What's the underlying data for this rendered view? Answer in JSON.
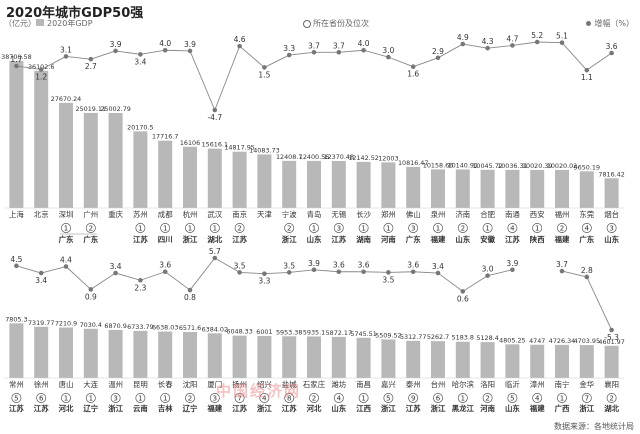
{
  "title": "2020年城市GDP50强",
  "legend": {
    "unit": "（亿元）",
    "bar_label": "2020年GDP",
    "rank_label": "所在省份及位次",
    "growth_label": "增幅（%）"
  },
  "source": "数据来源：各地统计局",
  "watermark": "中国经济网",
  "colors": {
    "bar": "#b8b8b8",
    "line": "#888888",
    "point": "#777777",
    "text": "#333333",
    "negative": "#333333"
  },
  "chart_data": [
    {
      "type": "bar",
      "categories": [
        "上海",
        "北京",
        "深圳",
        "广州",
        "重庆",
        "苏州",
        "成都",
        "杭州",
        "武汉",
        "南京",
        "天津",
        "宁波",
        "青岛",
        "无锡",
        "长沙",
        "郑州",
        "佛山",
        "泉州",
        "济南",
        "合肥",
        "南通",
        "西安",
        "福州",
        "东莞",
        "烟台"
      ],
      "series": [
        {
          "name": "2020年GDP",
          "values": [
            38700.58,
            36102.6,
            27670.24,
            25019.11,
            25002.79,
            20170.5,
            17716.7,
            16106,
            15616.1,
            14817.95,
            14083.73,
            12408.7,
            12400.56,
            12370.48,
            12142.52,
            12003,
            10816.47,
            10158.66,
            10140.91,
            10045.72,
            10036.31,
            10020.39,
            10020.02,
            9650.19,
            7816.42
          ]
        },
        {
          "name": "增幅（%）",
          "type": "line",
          "values": [
            1.7,
            1.2,
            3.1,
            2.7,
            3.9,
            3.4,
            4.0,
            3.9,
            -4.7,
            4.6,
            1.5,
            3.3,
            3.7,
            3.7,
            4.0,
            3.0,
            1.6,
            2.9,
            4.9,
            4.3,
            4.7,
            5.2,
            5.1,
            1.1,
            3.6
          ]
        }
      ],
      "province": [
        "",
        "",
        "广东",
        "广东",
        "",
        "江苏",
        "四川",
        "浙江",
        "湖北",
        "江苏",
        "",
        "浙江",
        "山东",
        "江苏",
        "湖南",
        "河南",
        "广东",
        "福建",
        "山东",
        "安徽",
        "江苏",
        "陕西",
        "福建",
        "广东",
        "山东"
      ],
      "province_rank": [
        "",
        "",
        "1",
        "2",
        "",
        "1",
        "1",
        "1",
        "1",
        "2",
        "",
        "2",
        "1",
        "3",
        "1",
        "1",
        "3",
        "1",
        "2",
        "1",
        "4",
        "1",
        "2",
        "4",
        "3"
      ],
      "ylim": [
        0,
        40000
      ]
    },
    {
      "type": "bar",
      "categories": [
        "常州",
        "徐州",
        "唐山",
        "大连",
        "温州",
        "昆明",
        "长春",
        "沈阳",
        "厦门",
        "扬州",
        "绍兴",
        "盐城",
        "石家庄",
        "潍坊",
        "南昌",
        "嘉兴",
        "泰州",
        "台州",
        "哈尔滨",
        "洛阳",
        "临沂",
        "漳州",
        "南宁",
        "金华",
        "襄阳"
      ],
      "series": [
        {
          "name": "2020年GDP",
          "values": [
            7805.3,
            7319.77,
            7210.9,
            7030.4,
            6870.9,
            6733.79,
            6638.03,
            6571.6,
            6384.02,
            6048.33,
            6001,
            5953.38,
            5935.1,
            5872.17,
            5745.51,
            5509.52,
            5312.77,
            5262.7,
            5183.8,
            5128.4,
            4805.25,
            4747,
            4726.34,
            4703.95,
            4601.97
          ]
        },
        {
          "name": "增幅（%）",
          "type": "line",
          "values": [
            4.5,
            3.4,
            4.4,
            0.9,
            3.4,
            2.3,
            3.6,
            0.8,
            5.7,
            3.5,
            3.3,
            3.5,
            3.9,
            3.6,
            3.6,
            3.5,
            3.6,
            3.4,
            0.6,
            3.0,
            3.9,
            null,
            3.7,
            2.8,
            -5.3
          ]
        }
      ],
      "province": [
        "江苏",
        "江苏",
        "河北",
        "辽宁",
        "浙江",
        "云南",
        "吉林",
        "辽宁",
        "福建",
        "江苏",
        "浙江",
        "江苏",
        "河北",
        "山东",
        "江西",
        "浙江",
        "江苏",
        "浙江",
        "黑龙江",
        "河南",
        "山东",
        "福建",
        "广西",
        "浙江",
        "湖北"
      ],
      "province_rank": [
        "5",
        "6",
        "1",
        "1",
        "3",
        "1",
        "1",
        "2",
        "3",
        "7",
        "4",
        "8",
        "2",
        "4",
        "1",
        "5",
        "9",
        "6",
        "1",
        "2",
        "5",
        "4",
        "1",
        "7",
        "2"
      ],
      "ylim": [
        0,
        8500
      ]
    }
  ]
}
